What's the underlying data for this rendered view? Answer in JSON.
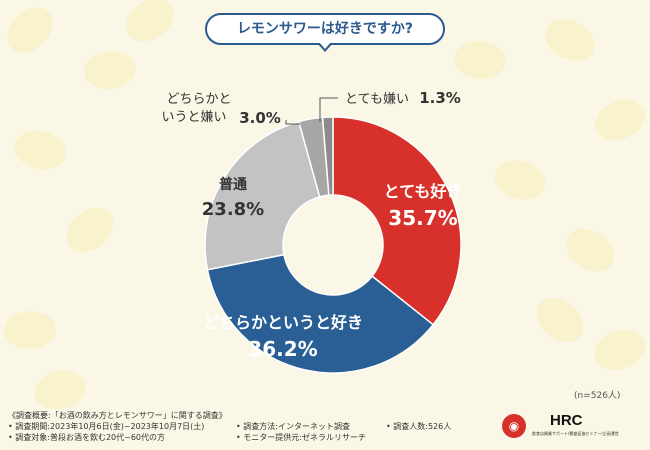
{
  "title": "レモンサワーは好きですか?",
  "sample_note": "(n=526人)",
  "colors": {
    "love": "#d8312b",
    "somewhat_like": "#2a5f96",
    "neutral": "#c3c3c3",
    "somewhat_dislike": "#a6a6a6",
    "dislike": "#8c8c8c",
    "title": "#2b5a8e"
  },
  "chart_data": {
    "type": "pie",
    "donut": true,
    "title": "レモンサワーは好きですか?",
    "slices": [
      {
        "label": "とても好き",
        "value": 35.7,
        "value_text": "35.7%"
      },
      {
        "label": "どちらかというと好き",
        "value": 36.2,
        "value_text": "36.2%"
      },
      {
        "label": "普通",
        "value": 23.8,
        "value_text": "23.8%"
      },
      {
        "label": "どちらかといいうと嫌い",
        "value": 3.0,
        "value_text": "3.0%"
      },
      {
        "label": "とても嫌い",
        "value": 1.3,
        "value_text": "1.3%"
      }
    ]
  },
  "labels": {
    "love_name": "とても好き",
    "love_value": "35.7%",
    "like_name": "どちらかというと好き",
    "like_value": "36.2%",
    "neutral_name": "普通",
    "neutral_value": "23.8%",
    "sdislike_name_1": "どちらかと",
    "sdislike_name_2": "いうと嫌い",
    "sdislike_value": "3.0%",
    "dislike_name": "とても嫌い",
    "dislike_value": "1.3%"
  },
  "footer": {
    "overview": "《調査概要:「お酒の飲み方とレモンサワー」に関する調査》",
    "period": "• 調査期間:2023年10月6日(金)~2023年10月7日(土)",
    "method": "• 調査方法:インターネット調査",
    "count": "• 調査人数:526人",
    "target": "• 調査対象:普段お酒を飲む20代~60代の方",
    "provider": "• モニター提供元:ゼネラルリサーチ"
  },
  "logo": {
    "name": "HRC",
    "subtitle": "飲食店開業サポート/繁盛促進セミナー/企画運営"
  }
}
